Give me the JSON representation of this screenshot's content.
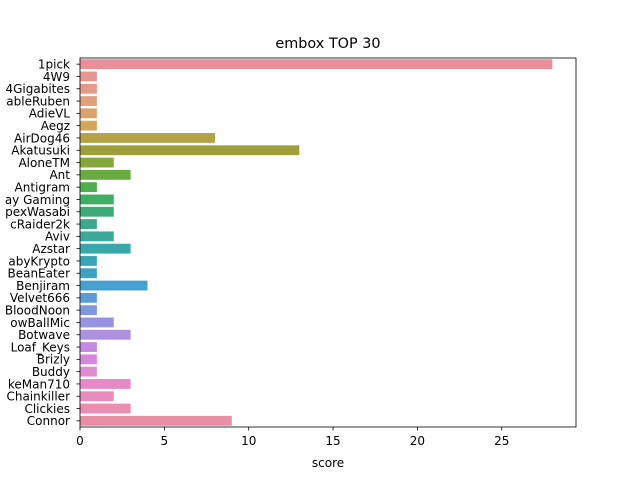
{
  "chart_data": {
    "type": "bar",
    "orientation": "horizontal",
    "title": "embox TOP 30",
    "xlabel": "score",
    "ylabel": "",
    "xlim": [
      0,
      29.4
    ],
    "xticks": [
      0,
      5,
      10,
      15,
      20,
      25
    ],
    "grid": false,
    "legend": "none",
    "categories": [
      "1pick",
      "4W9",
      "4Gigabites",
      "ableRuben",
      "AdieVL",
      "Aegz",
      "AirDog46",
      "Akatusuki",
      "AloneTM",
      "Ant",
      "Antigram",
      "ay Gaming",
      "pexWasabi",
      "cRaider2k",
      "Aviv",
      "Azstar",
      "abyKrypto",
      "BeanEater",
      "Benjiram",
      "Velvet666",
      "BloodNoon",
      "owBallMic",
      "Botwave",
      "Loaf_Keys",
      "Brizly",
      "Buddy",
      "keMan710",
      "Chainkiller",
      "Clickies",
      "Connor"
    ],
    "values": [
      28,
      1,
      1,
      1,
      1,
      1,
      8,
      13,
      2,
      3,
      1,
      2,
      2,
      1,
      2,
      3,
      1,
      1,
      4,
      1,
      1,
      2,
      3,
      1,
      1,
      1,
      3,
      2,
      3,
      9
    ],
    "colors": [
      "#e8909a",
      "#e69693",
      "#e39a88",
      "#dfa07b",
      "#daa36b",
      "#d3a65a",
      "#b4a346",
      "#9e9e3a",
      "#85a63b",
      "#68ab41",
      "#4fae4c",
      "#3fae62",
      "#3cab78",
      "#3da88a",
      "#3ea898",
      "#3aa7a8",
      "#39a5b6",
      "#3ba2c4",
      "#46a0cf",
      "#5c9bd8",
      "#7e97dd",
      "#9893e0",
      "#ae90e1",
      "#c48ae0",
      "#d688dd",
      "#e18bd3",
      "#e58ac8",
      "#e88bbd",
      "#e98db1",
      "#e98fa5"
    ]
  }
}
